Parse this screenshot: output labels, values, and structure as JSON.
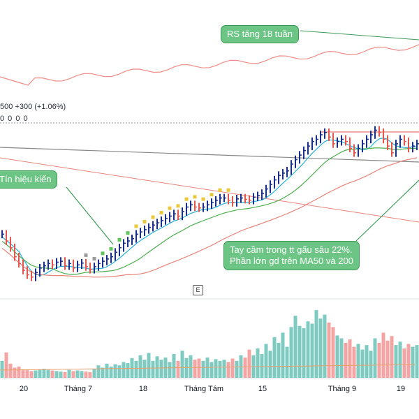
{
  "header": {
    "price_line": "500  +300 (+1.06%)",
    "indicator_zeros": "0  0  0  0"
  },
  "annotations": {
    "rs": "RS tăng 18 tuần",
    "signal": "Tín hiệu kiến",
    "handle": "Tay cầm trong tt gấu sâu 22%.\nPhần lớn gd trên MA50 và 200",
    "event_marker": "E"
  },
  "colors": {
    "up_bar": "#1a2f8a",
    "down_bar": "#e2564f",
    "ant_up": "#e9c93a",
    "ant_green": "#5ec55a",
    "ant_gray": "#9a9a9a",
    "ma10": "#26b0d9",
    "ma50": "#4cae4c",
    "ma200": "#e8837a",
    "long_line": "#888888",
    "rs_line": "#f08a85",
    "vol_up": "#7fcbc2",
    "vol_down": "#f4a4a2",
    "callout_bg": "#6cc584"
  },
  "chart_data": {
    "type": "line",
    "x_tick_labels": [
      "20",
      "Tháng 7",
      "18",
      "Tháng Tám",
      "15",
      "Tháng 9",
      "19"
    ],
    "bars_count": 100,
    "price": {
      "ohlc_close": [
        88.0,
        86.5,
        85.0,
        83.0,
        81.5,
        80.0,
        79.0,
        78.5,
        79.5,
        80.5,
        81.0,
        81.5,
        81.2,
        81.8,
        82.0,
        81.0,
        81.5,
        80.5,
        81.2,
        81.6,
        80.8,
        80.2,
        80.8,
        81.5,
        82.0,
        82.5,
        83.0,
        84.0,
        85.0,
        86.0,
        86.5,
        87.0,
        88.0,
        88.5,
        89.0,
        89.5,
        90.0,
        90.5,
        91.0,
        91.5,
        92.0,
        92.5,
        92.0,
        93.0,
        94.0,
        94.5,
        94.0,
        93.8,
        94.0,
        94.5,
        95.0,
        95.5,
        96.0,
        96.0,
        95.5,
        95.0,
        95.8,
        96.0,
        95.7,
        95.5,
        96.2,
        96.5,
        97.0,
        98.0,
        99.0,
        100.0,
        101.0,
        101.5,
        102.0,
        103.5,
        104.5,
        105.5,
        106.5,
        107.5,
        108.5,
        109.0,
        110.0,
        110.5,
        109.5,
        108.0,
        108.5,
        109.0,
        108.5,
        107.0,
        106.0,
        107.0,
        108.0,
        109.0,
        110.0,
        111.0,
        110.5,
        109.0,
        107.5,
        106.0,
        108.0,
        109.0,
        108.5,
        107.0,
        107.5,
        108.0
      ],
      "trend_high": 111.0
    },
    "volume": {
      "values": [
        30,
        45,
        25,
        18,
        20,
        15,
        14,
        12,
        13,
        15,
        16,
        14,
        13,
        12,
        11,
        10,
        14,
        12,
        13,
        12,
        11,
        10,
        16,
        22,
        18,
        25,
        20,
        24,
        22,
        28,
        26,
        35,
        30,
        40,
        32,
        44,
        30,
        38,
        32,
        36,
        28,
        42,
        30,
        48,
        35,
        40,
        32,
        34,
        30,
        36,
        28,
        33,
        30,
        32,
        28,
        34,
        30,
        40,
        36,
        50,
        40,
        52,
        42,
        60,
        48,
        72,
        62,
        80,
        55,
        90,
        110,
        92,
        88,
        100,
        96,
        120,
        105,
        112,
        98,
        90,
        75,
        70,
        62,
        68,
        55,
        60,
        50,
        58,
        48,
        70,
        62,
        80,
        66,
        74,
        58,
        64,
        52,
        60,
        55,
        58
      ]
    },
    "series": [
      {
        "name": "",
        "role": "ma10"
      },
      {
        "name": "",
        "role": "ma50"
      },
      {
        "name": "",
        "role": "ma200"
      },
      {
        "name": "",
        "role": "rs"
      }
    ],
    "grid": false,
    "legend": "none"
  }
}
